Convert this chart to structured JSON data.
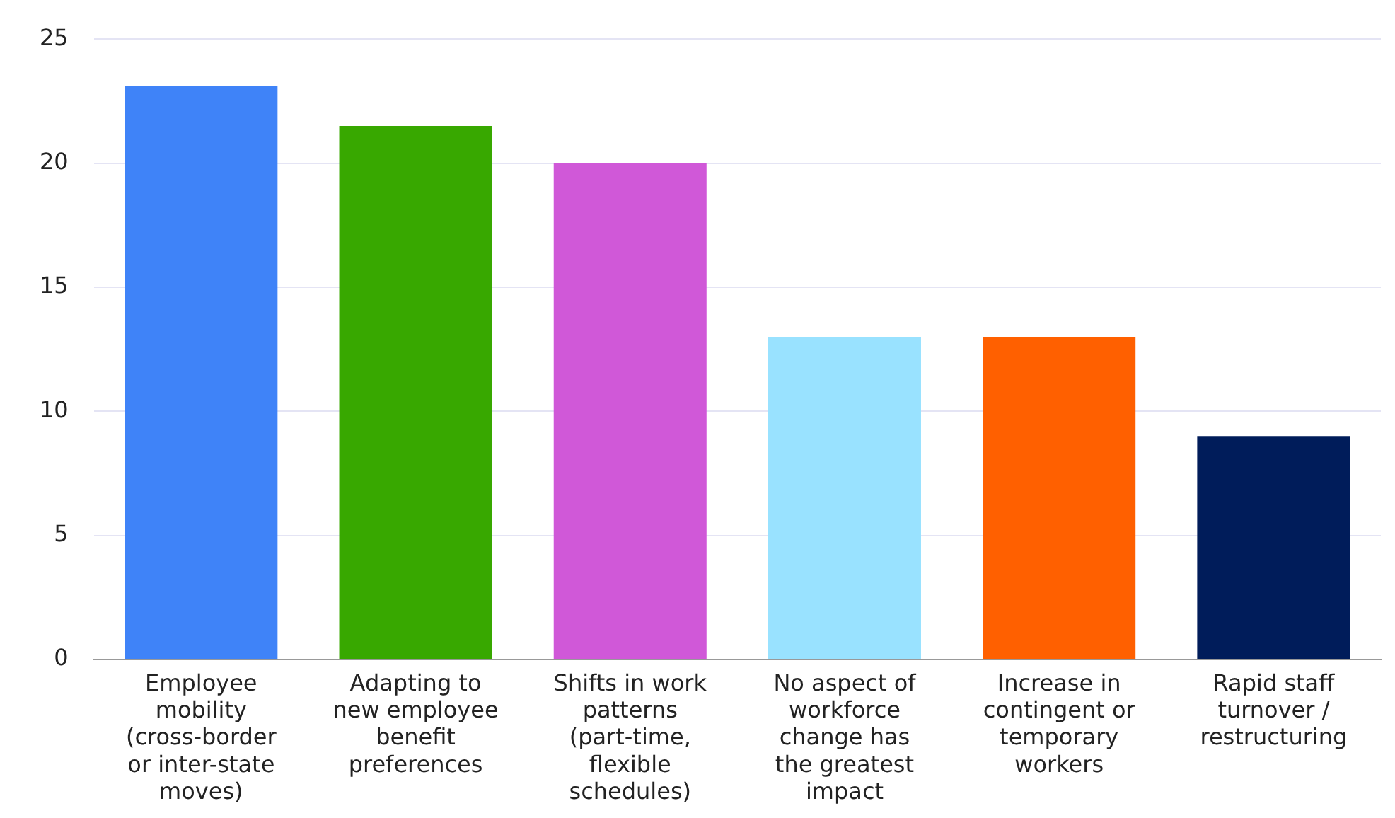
{
  "chart_data": {
    "type": "bar",
    "categories": [
      "Employee mobility (cross-border or inter-state moves)",
      "Adapting to new employee benefit preferences",
      "Shifts in work patterns (part-time, flexible schedules)",
      "No aspect of workforce change has the greatest impact",
      "Increase in contingent or temporary workers",
      "Rapid staff turnover / restructuring"
    ],
    "values": [
      23.1,
      21.5,
      20,
      13,
      13,
      9
    ],
    "colors": [
      "#3f83f8",
      "#38a800",
      "#d058d8",
      "#99e2ff",
      "#ff6000",
      "#001c5a"
    ],
    "ylim": [
      0,
      25
    ],
    "yticks": [
      0,
      5,
      10,
      15,
      20,
      25
    ],
    "grid": "y",
    "legend": false
  }
}
